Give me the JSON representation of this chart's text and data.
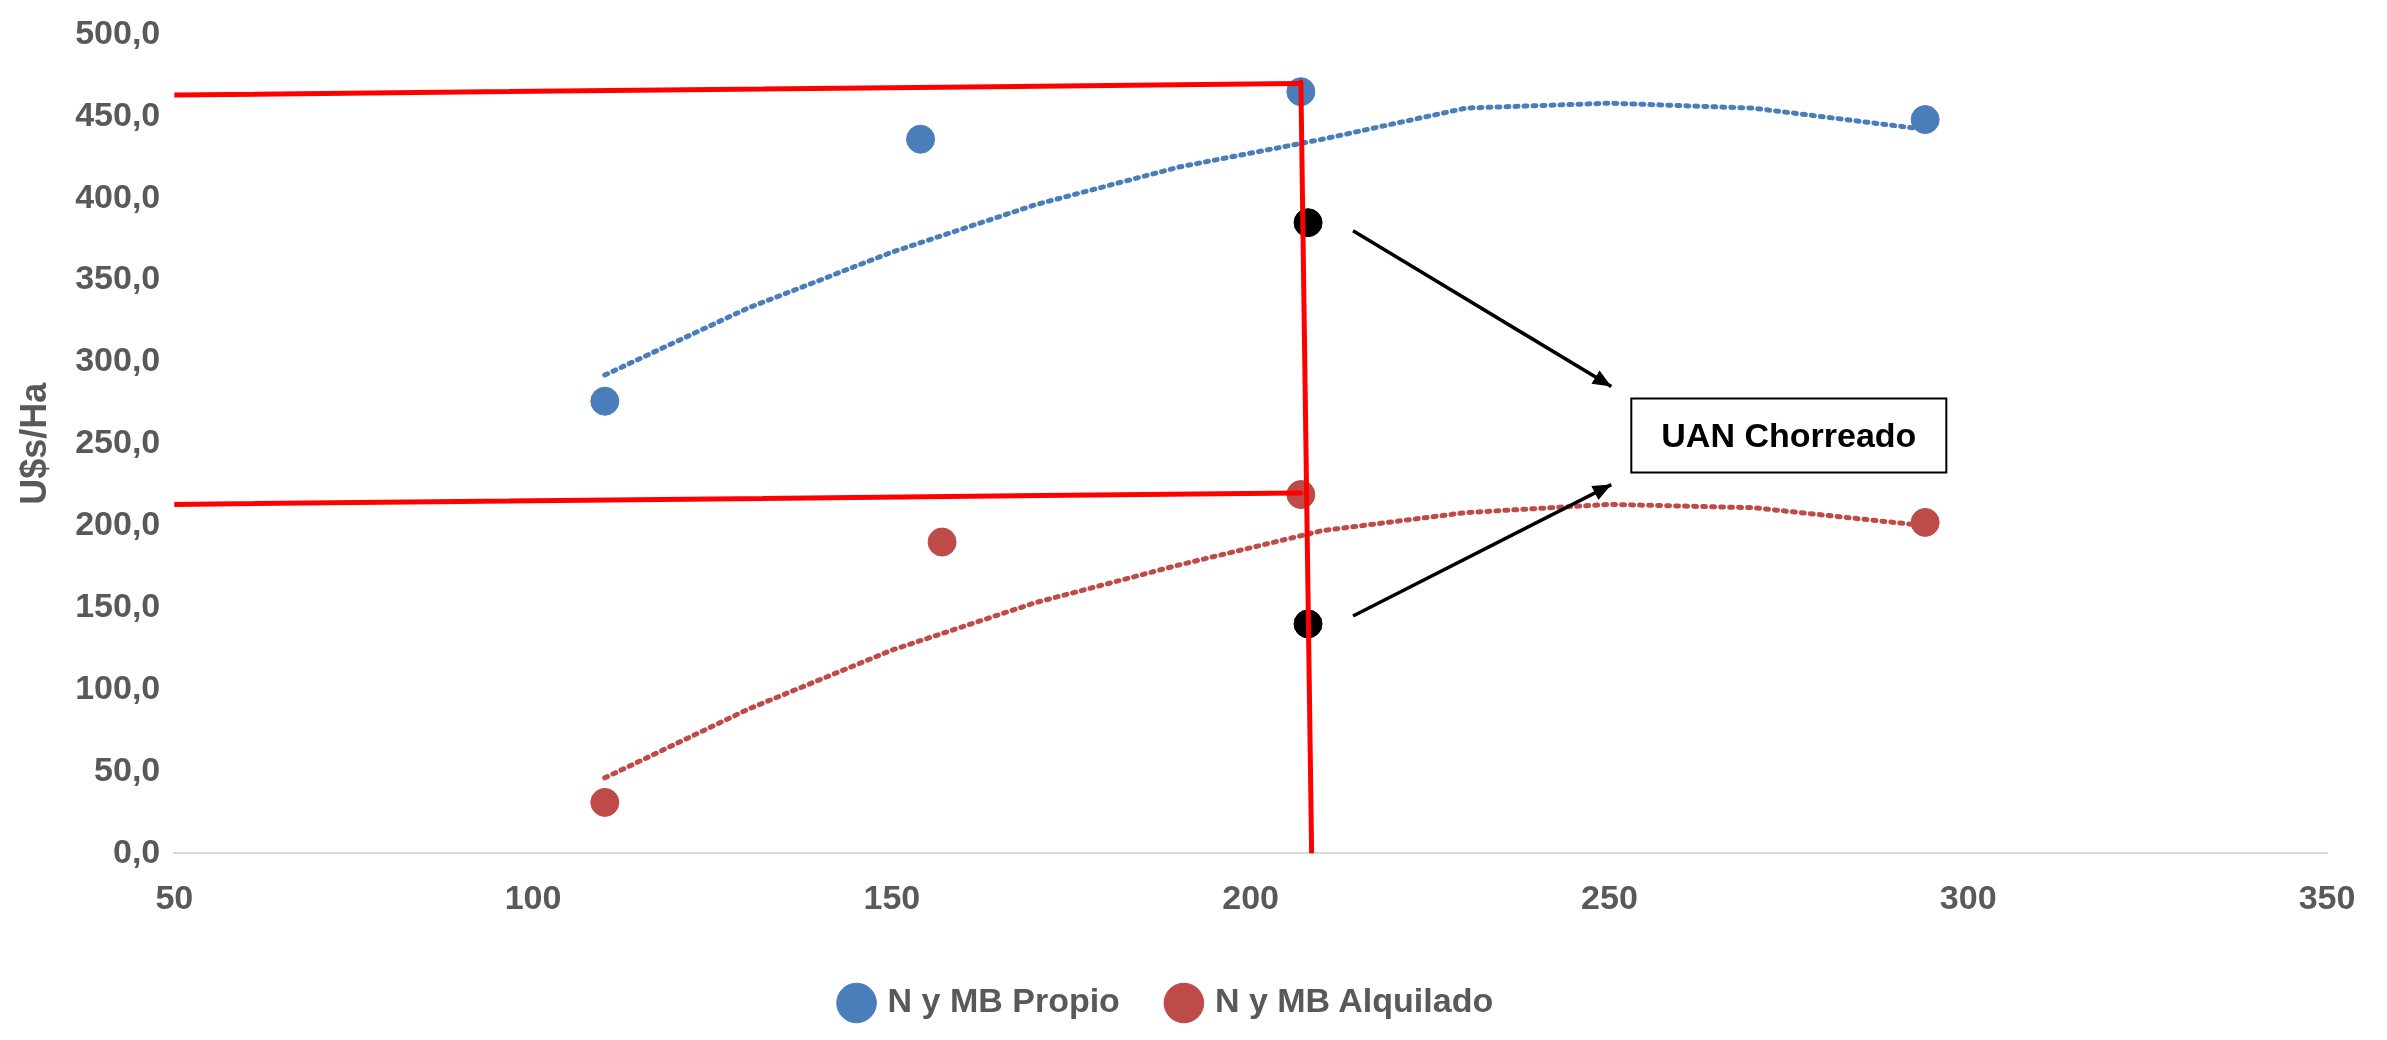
{
  "chart_data": {
    "type": "scatter",
    "ylabel": "U$s/Ha",
    "legend": "bottom",
    "marker": "circle",
    "xlim": [
      50,
      350
    ],
    "xticks": [
      50,
      100,
      150,
      200,
      250,
      300,
      350
    ],
    "ylim": [
      0,
      500
    ],
    "yticks": [
      {
        "value": 0,
        "label": "0,0"
      },
      {
        "value": 50,
        "label": "50,0"
      },
      {
        "value": 100,
        "label": "100,0"
      },
      {
        "value": 150,
        "label": "150,0"
      },
      {
        "value": 200,
        "label": "200,0"
      },
      {
        "value": 250,
        "label": "250,0"
      },
      {
        "value": 300,
        "label": "300,0"
      },
      {
        "value": 350,
        "label": "350,0"
      },
      {
        "value": 400,
        "label": "400,0"
      },
      {
        "value": 450,
        "label": "450,0"
      },
      {
        "value": 500,
        "label": "500,0"
      }
    ],
    "annotations": [
      "UAN Chorreado"
    ],
    "series": [
      {
        "name": "N y MB Propio",
        "color": "#4a7ebb",
        "x": [
          110,
          154,
          207,
          294
        ],
        "values": [
          276,
          436,
          465,
          448
        ]
      },
      {
        "name": "N y MB Alquilado",
        "color": "#be4b48",
        "x": [
          110,
          157,
          207,
          294
        ],
        "values": [
          31,
          190,
          219,
          202
        ]
      },
      {
        "type": "line",
        "marker": "none",
        "line_style": "dotted",
        "color": "#4a7ebb",
        "x": [
          110,
          130,
          150,
          170,
          190,
          210,
          230,
          250,
          270,
          294
        ],
        "values": [
          292,
          333,
          367,
          396,
          419,
          436,
          455,
          458,
          455,
          442
        ]
      },
      {
        "type": "line",
        "marker": "none",
        "line_style": "dotted",
        "color": "#be4b48",
        "x": [
          110,
          130,
          150,
          170,
          190,
          210,
          230,
          250,
          270,
          294
        ],
        "values": [
          46,
          88,
          124,
          153,
          176,
          197,
          208,
          213,
          211,
          200
        ]
      },
      {
        "color": "#000000",
        "x": [
          208,
          208
        ],
        "values": [
          385,
          140
        ]
      },
      {
        "type": "line",
        "marker": "none",
        "line_style": "solid",
        "color": "#ff0000",
        "x": [
          50,
          207
        ],
        "values": [
          463,
          470
        ]
      },
      {
        "type": "line",
        "marker": "none",
        "line_style": "solid",
        "color": "#ff0000",
        "x": [
          50,
          207
        ],
        "values": [
          213,
          220
        ]
      },
      {
        "type": "line",
        "marker": "none",
        "line_style": "solid",
        "color": "#ff0000",
        "x": [
          207,
          208.5
        ],
        "values": [
          471,
          0
        ]
      }
    ]
  }
}
